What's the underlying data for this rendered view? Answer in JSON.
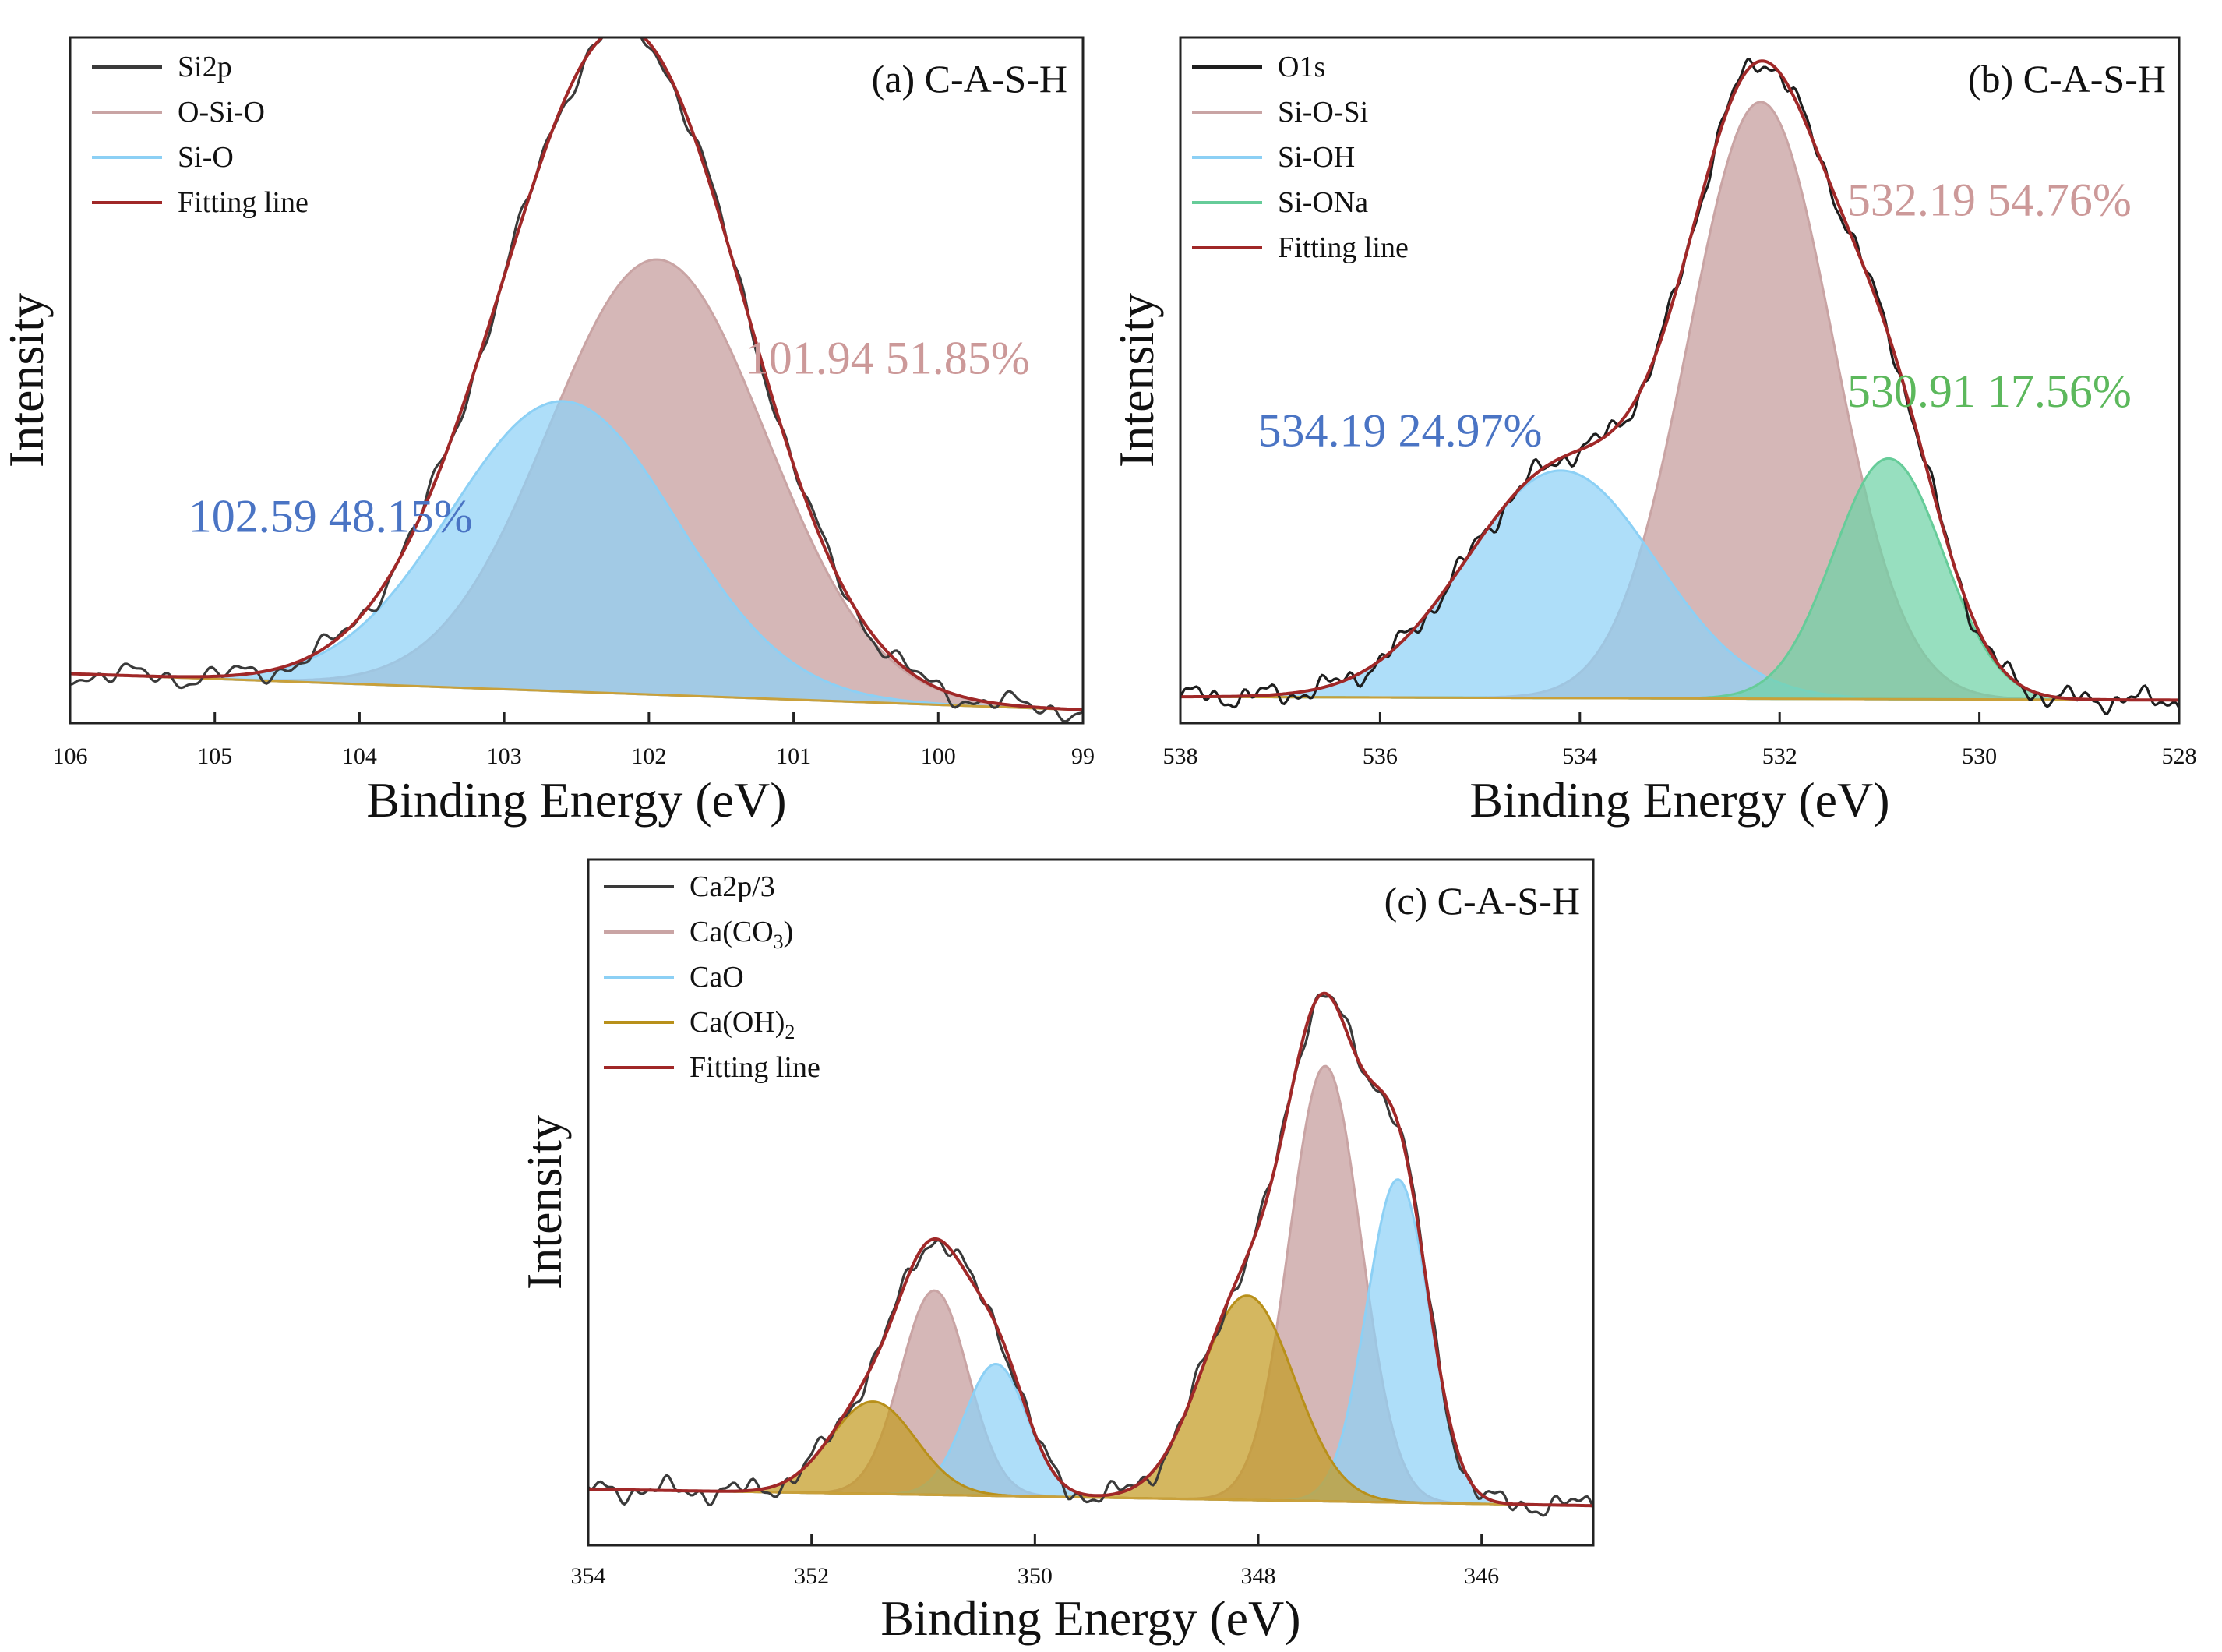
{
  "chart_data": [
    {
      "type": "line",
      "panel": "a",
      "title": "(a) C-A-S-H",
      "xlabel": "Binding Energy (eV)",
      "ylabel": "Intensity",
      "xlim": [
        106,
        99
      ],
      "x_reversed": true,
      "xticks": [
        "106",
        "105",
        "104",
        "103",
        "102",
        "101",
        "100",
        "99"
      ],
      "ylim": [
        0,
        1.04
      ],
      "legend_position": "top-left",
      "baseline": [
        [
          106,
          0.075
        ],
        [
          99,
          0.02
        ]
      ],
      "series": [
        {
          "name": "Si2p",
          "role": "raw",
          "color": "#3a3a3a"
        },
        {
          "name": "O-Si-O",
          "role": "component",
          "center": 101.94,
          "height": 0.66,
          "sigma": 0.75,
          "color": "#c9a4a4",
          "fill": "#c59b9b"
        },
        {
          "name": "Si-O",
          "role": "component",
          "center": 102.59,
          "height": 0.44,
          "sigma": 0.78,
          "color": "#8cd0f5",
          "fill": "#8fd1f7"
        },
        {
          "name": "Fitting line",
          "role": "fit",
          "color": "#a02828"
        }
      ],
      "annotations": [
        {
          "text": "101.94 51.85%",
          "color": "#cc9999",
          "x": 100.35,
          "y": 0.53
        },
        {
          "text": "102.59 48.15%",
          "color": "#4a74c4",
          "x": 104.2,
          "y": 0.29
        }
      ]
    },
    {
      "type": "line",
      "panel": "b",
      "title": "(b) C-A-S-H",
      "xlabel": "Binding Energy (eV)",
      "ylabel": "Intensity",
      "xlim": [
        538,
        528
      ],
      "x_reversed": true,
      "xticks": [
        "538",
        "536",
        "534",
        "532",
        "530",
        "528"
      ],
      "ylim": [
        0,
        1.04
      ],
      "legend_position": "top-left",
      "baseline": [
        [
          538,
          0.04
        ],
        [
          528,
          0.035
        ]
      ],
      "series": [
        {
          "name": "O1s",
          "role": "raw",
          "color": "#1e1e1e"
        },
        {
          "name": "Si-O-Si",
          "role": "component",
          "center": 532.19,
          "height": 0.905,
          "sigma": 0.72,
          "color": "#c9a4a4",
          "fill": "#c59b9b"
        },
        {
          "name": "Si-OH",
          "role": "component",
          "center": 534.19,
          "height": 0.345,
          "sigma": 0.95,
          "color": "#8cd0f5",
          "fill": "#8fd1f7"
        },
        {
          "name": "Si-ONa",
          "role": "component",
          "center": 530.91,
          "height": 0.365,
          "sigma": 0.55,
          "color": "#66cc99",
          "fill": "#6fd3a6"
        },
        {
          "name": "Fitting line",
          "role": "fit",
          "color": "#a02828"
        }
      ],
      "annotations": [
        {
          "text": "532.19 54.76%",
          "color": "#cc9999",
          "x": 529.9,
          "y": 0.77
        },
        {
          "text": "534.19 24.97%",
          "color": "#4a74c4",
          "x": 535.8,
          "y": 0.42
        },
        {
          "text": "530.91 17.56%",
          "color": "#5cb85c",
          "x": 529.9,
          "y": 0.48
        }
      ]
    },
    {
      "type": "line",
      "panel": "c",
      "title": "(c) C-A-S-H",
      "xlabel": "Binding Energy (eV)",
      "ylabel": "Intensity",
      "xlim": [
        354,
        345
      ],
      "x_reversed": true,
      "xticks": [
        "354",
        "352",
        "350",
        "348",
        "346"
      ],
      "ylim": [
        0,
        1.04
      ],
      "legend_position": "top-left",
      "baseline": [
        [
          354,
          0.085
        ],
        [
          345,
          0.06
        ]
      ],
      "series": [
        {
          "name": "Ca2p/3",
          "role": "raw",
          "color": "#3a3a3a"
        },
        {
          "name": "Ca(CO3)",
          "legend_text": "Ca(CO",
          "legend_sub": "3",
          "legend_tail": ")",
          "role": "component",
          "centers": [
            350.9,
            347.4
          ],
          "heights": [
            0.31,
            0.66
          ],
          "sigmas": [
            0.3,
            0.32
          ],
          "color": "#c9a4a4",
          "fill": "#c59b9b"
        },
        {
          "name": "CaO",
          "role": "component",
          "centers": [
            350.35,
            346.75
          ],
          "heights": [
            0.2,
            0.49
          ],
          "sigmas": [
            0.28,
            0.28
          ],
          "color": "#8cd0f5",
          "fill": "#8fd1f7"
        },
        {
          "name": "Ca(OH)2",
          "legend_text": "Ca(OH)",
          "legend_sub": "2",
          "legend_tail": "",
          "role": "component",
          "centers": [
            351.45,
            348.1
          ],
          "heights": [
            0.14,
            0.31
          ],
          "sigmas": [
            0.38,
            0.42
          ],
          "color": "#b8901a",
          "fill": "#c39b22"
        },
        {
          "name": "Fitting line",
          "role": "fit",
          "color": "#a02828"
        }
      ],
      "annotations": []
    }
  ]
}
